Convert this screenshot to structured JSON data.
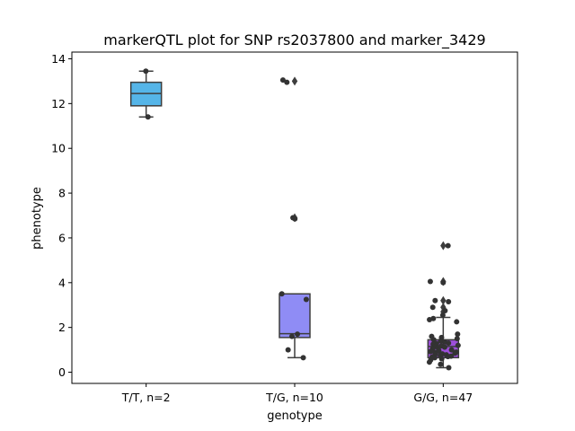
{
  "chart_data": {
    "type": "box",
    "title": "markerQTL plot for SNP rs2037800 and marker_3429",
    "xlabel": "genotype",
    "ylabel": "phenotype",
    "ylim": [
      -0.5,
      14.3
    ],
    "yticks": [
      0,
      2,
      4,
      6,
      8,
      10,
      12,
      14
    ],
    "grid": false,
    "categories": [
      "T/T, n=2",
      "T/G, n=10",
      "G/G, n=47"
    ],
    "colors": [
      "#55b5e8",
      "#8f8cf5",
      "#9d4fdb"
    ],
    "boxes": [
      {
        "q1": 11.9,
        "median": 12.45,
        "q3": 12.95,
        "whisker_low": 11.4,
        "whisker_high": 13.45,
        "outliers": []
      },
      {
        "q1": 1.55,
        "median": 1.72,
        "q3": 3.5,
        "whisker_low": 0.65,
        "whisker_high": 3.5,
        "outliers": [
          6.9,
          13.0
        ]
      },
      {
        "q1": 0.65,
        "median": 1.15,
        "q3": 1.45,
        "whisker_low": 0.2,
        "whisker_high": 2.45,
        "outliers": [
          2.7,
          2.9,
          3.2,
          4.05,
          5.65
        ]
      }
    ],
    "points": [
      [
        13.45,
        11.4
      ],
      [
        13.05,
        12.95,
        6.9,
        6.85,
        3.5,
        3.25,
        1.7,
        1.6,
        1.0,
        0.65
      ],
      [
        5.65,
        4.05,
        4.0,
        3.2,
        3.15,
        2.9,
        2.75,
        2.55,
        2.4,
        2.35,
        2.25,
        1.7,
        1.6,
        1.55,
        1.5,
        1.45,
        1.4,
        1.35,
        1.3,
        1.28,
        1.25,
        1.2,
        1.18,
        1.15,
        1.12,
        1.1,
        1.05,
        1.0,
        0.98,
        0.95,
        0.92,
        0.9,
        0.88,
        0.85,
        0.82,
        0.8,
        0.78,
        0.75,
        0.72,
        0.7,
        0.68,
        0.65,
        0.6,
        0.55,
        0.45,
        0.35,
        0.2
      ]
    ]
  }
}
